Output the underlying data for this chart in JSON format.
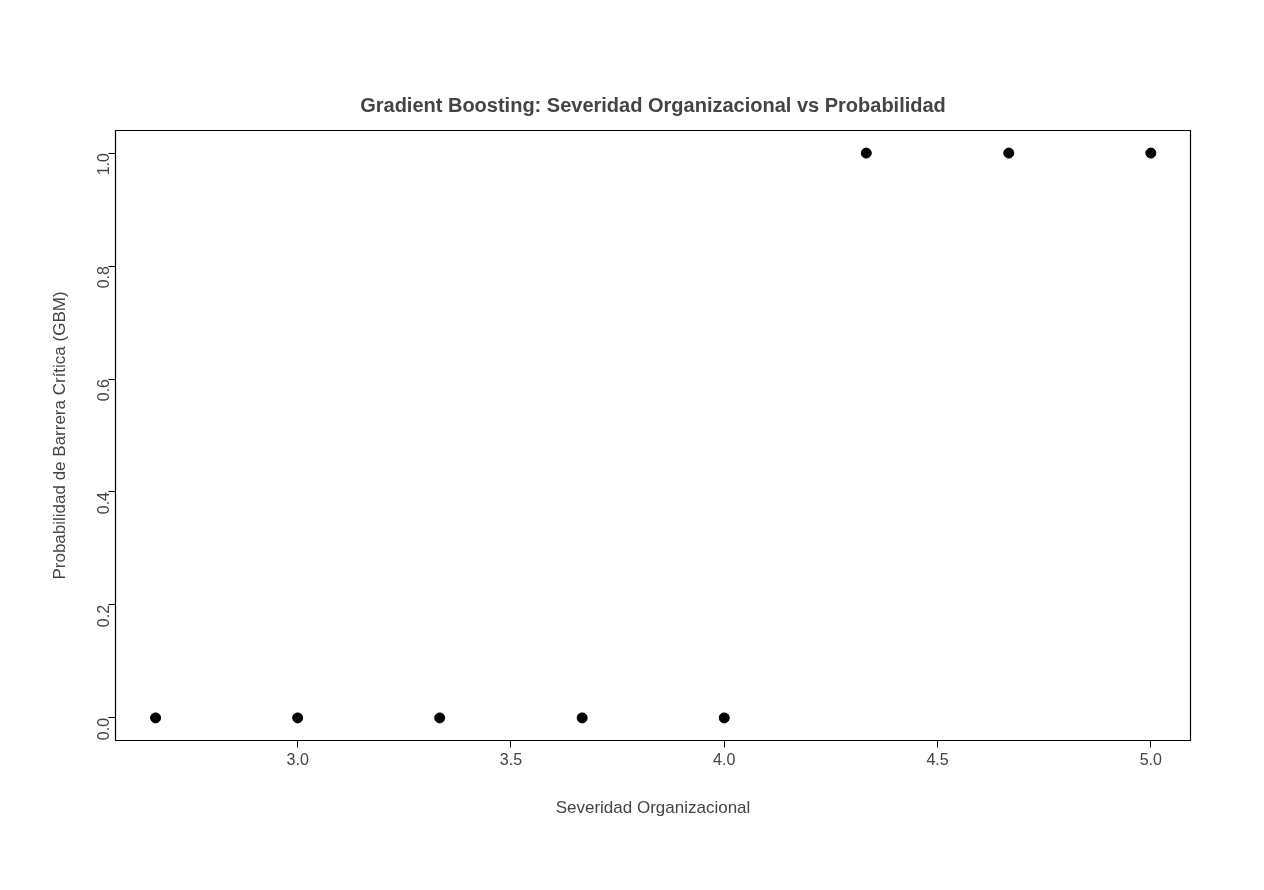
{
  "chart_data": {
    "type": "scatter",
    "title": "Gradient Boosting: Severidad Organizacional vs Probabilidad",
    "xlabel": "Severidad Organizacional",
    "ylabel": "Probabilidad de Barrera Crítica (GBM)",
    "x": [
      2.667,
      3.0,
      3.333,
      3.667,
      4.0,
      4.333,
      4.667,
      5.0
    ],
    "series": [
      {
        "color": "#000000",
        "values": [
          0,
          0,
          0,
          0,
          0,
          1,
          1,
          1
        ]
      }
    ],
    "xlim": [
      2.573,
      5.093
    ],
    "ylim": [
      -0.04,
      1.04
    ],
    "xticks": [
      {
        "value": 3,
        "label": "3.0"
      },
      {
        "value": 3.5,
        "label": "3.5"
      },
      {
        "value": 4,
        "label": "4.0"
      },
      {
        "value": 4.5,
        "label": "4.5"
      },
      {
        "value": 5,
        "label": "5.0"
      }
    ],
    "yticks": [
      {
        "value": 0,
        "label": "0.0"
      },
      {
        "value": 0.2,
        "label": "0.2"
      },
      {
        "value": 0.4,
        "label": "0.4"
      },
      {
        "value": 0.6,
        "label": "0.6"
      },
      {
        "value": 0.8,
        "label": "0.8"
      },
      {
        "value": 1,
        "label": "1.0"
      }
    ],
    "marker": "circle"
  }
}
